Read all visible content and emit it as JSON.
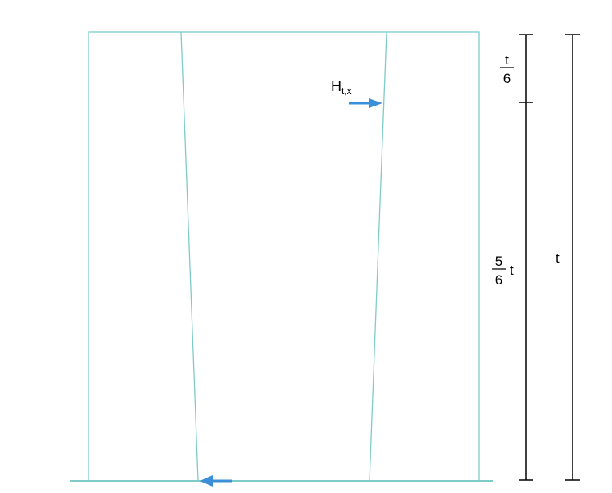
{
  "colors": {
    "outline": "#7ecbc8",
    "arrow": "#3b8fd9",
    "dimension": "#000000"
  },
  "labels": {
    "force_main": "H",
    "force_sub": "t,x",
    "top_dim_num": "t",
    "top_dim_den": "6",
    "lower_dim_num": "5",
    "lower_dim_den": "6",
    "lower_dim_var": "t",
    "total_dim": "t"
  }
}
